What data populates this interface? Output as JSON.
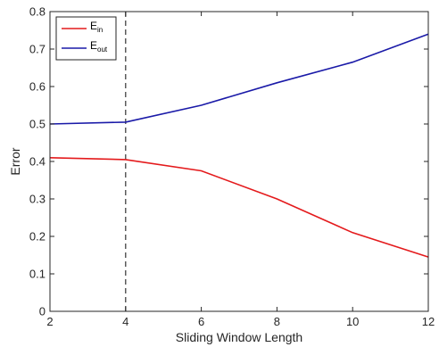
{
  "chart_data": {
    "type": "line",
    "xlabel": "Sliding Window Length",
    "ylabel": "Error",
    "xlim": [
      2,
      12
    ],
    "ylim": [
      0,
      0.8
    ],
    "xticks": [
      2,
      4,
      6,
      8,
      10,
      12
    ],
    "yticks": [
      0,
      0.1,
      0.2,
      0.3,
      0.4,
      0.5,
      0.6,
      0.7,
      0.8
    ],
    "xtick_labels": [
      "2",
      "4",
      "6",
      "8",
      "10",
      "12"
    ],
    "ytick_labels": [
      "0",
      "0.1",
      "0.2",
      "0.3",
      "0.4",
      "0.5",
      "0.6",
      "0.7",
      "0.8"
    ],
    "grid": false,
    "legend_position": "top-left",
    "x": [
      2,
      4,
      6,
      8,
      10,
      12
    ],
    "series": [
      {
        "name": "E",
        "subscript": "in",
        "color": "#e41a1c",
        "values": [
          0.41,
          0.405,
          0.375,
          0.3,
          0.21,
          0.145
        ]
      },
      {
        "name": "E",
        "subscript": "out",
        "color": "#1a1aa8",
        "values": [
          0.5,
          0.505,
          0.55,
          0.61,
          0.665,
          0.74
        ]
      }
    ],
    "annotations": [
      {
        "type": "vertical-dashed-line",
        "x": 4,
        "color": "#333333"
      }
    ]
  }
}
